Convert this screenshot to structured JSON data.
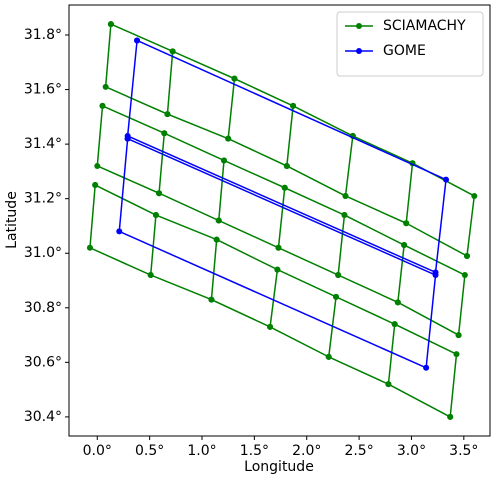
{
  "chart_data": {
    "type": "line",
    "x_label": "Longitude",
    "y_label": "Latitude",
    "xlim": [
      -0.27,
      3.75
    ],
    "ylim": [
      30.33,
      31.91
    ],
    "xticks": [
      {
        "value": 0,
        "label": "0.0°"
      },
      {
        "value": 0.5,
        "label": "0.5°"
      },
      {
        "value": 1,
        "label": "1.0°"
      },
      {
        "value": 1.5,
        "label": "1.5°"
      },
      {
        "value": 2,
        "label": "2.0°"
      },
      {
        "value": 2.5,
        "label": "2.5°"
      },
      {
        "value": 3,
        "label": "3.0°"
      },
      {
        "value": 3.5,
        "label": "3.5°"
      }
    ],
    "yticks": [
      {
        "value": 30.4,
        "label": "30.4°"
      },
      {
        "value": 30.6,
        "label": "30.6°"
      },
      {
        "value": 30.8,
        "label": "30.8°"
      },
      {
        "value": 31,
        "label": "31.0°"
      },
      {
        "value": 31.2,
        "label": "31.2°"
      },
      {
        "value": 31.4,
        "label": "31.4°"
      },
      {
        "value": 31.6,
        "label": "31.6°"
      },
      {
        "value": 31.8,
        "label": "31.8°"
      }
    ],
    "legend": "upper right",
    "series": [
      {
        "name": "SCIAMACHY",
        "color": "#008000",
        "x": [
          0.13,
          0.08,
          0.67,
          0.72,
          1.31,
          1.25,
          1.81,
          1.87,
          2.44,
          2.37,
          2.95,
          3.01,
          3.6,
          3.53,
          null,
          0.13,
          0.72,
          0.67,
          1.25,
          1.31,
          1.87,
          1.81,
          2.37,
          2.44,
          3.01,
          2.95,
          3.53,
          null,
          0.05,
          0.0,
          0.59,
          0.64,
          1.21,
          1.16,
          1.73,
          1.79,
          2.36,
          2.3,
          2.87,
          2.93,
          3.51,
          3.45,
          null,
          0.05,
          0.64,
          0.59,
          1.16,
          1.21,
          1.79,
          1.73,
          2.3,
          2.36,
          2.93,
          2.87,
          3.45,
          null,
          -0.02,
          -0.07,
          0.51,
          0.56,
          1.14,
          1.09,
          1.65,
          1.72,
          2.28,
          2.21,
          2.78,
          2.84,
          3.43,
          3.37,
          null,
          -0.02,
          0.56,
          0.51,
          1.09,
          1.14,
          1.72,
          1.65,
          2.21,
          2.28,
          2.84,
          2.78,
          3.37
        ],
        "y": [
          31.84,
          31.61,
          31.51,
          31.74,
          31.64,
          31.42,
          31.32,
          31.54,
          31.43,
          31.21,
          31.11,
          31.33,
          31.21,
          30.99,
          null,
          31.84,
          31.74,
          31.51,
          31.42,
          31.64,
          31.54,
          31.32,
          31.21,
          31.43,
          31.33,
          31.11,
          30.99,
          null,
          31.54,
          31.32,
          31.22,
          31.44,
          31.34,
          31.12,
          31.02,
          31.24,
          31.14,
          30.92,
          30.82,
          31.03,
          30.92,
          30.7,
          null,
          31.54,
          31.44,
          31.22,
          31.12,
          31.34,
          31.24,
          31.02,
          30.92,
          31.14,
          31.03,
          30.82,
          30.7,
          null,
          31.25,
          31.02,
          30.92,
          31.14,
          31.05,
          30.83,
          30.73,
          30.94,
          30.84,
          30.62,
          30.52,
          30.74,
          30.63,
          30.4,
          null,
          31.25,
          31.14,
          30.92,
          30.83,
          31.05,
          30.94,
          30.73,
          30.62,
          30.84,
          30.74,
          30.52,
          30.4
        ]
      },
      {
        "name": "GOME",
        "color": "#0000ff",
        "x": [
          0.38,
          3.33,
          3.23,
          0.29,
          0.38,
          null,
          0.29,
          3.23,
          3.14,
          0.21,
          0.29
        ],
        "y": [
          31.78,
          31.27,
          30.93,
          31.43,
          31.78,
          null,
          31.42,
          30.92,
          30.58,
          31.08,
          31.42
        ]
      }
    ]
  }
}
